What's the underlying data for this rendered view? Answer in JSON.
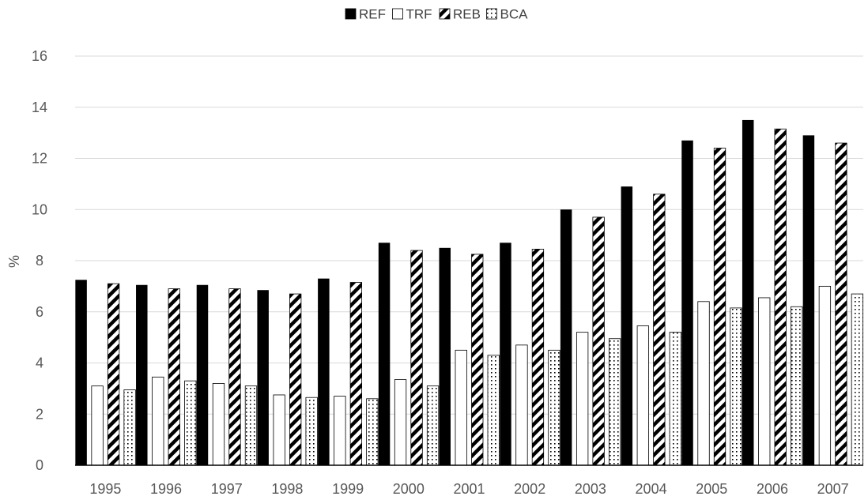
{
  "chart_data": {
    "type": "bar",
    "title": "",
    "xlabel": "",
    "ylabel": "%",
    "ylim": [
      0,
      16
    ],
    "yticks": [
      0,
      2,
      4,
      6,
      8,
      10,
      12,
      14,
      16
    ],
    "grid": true,
    "legend_position": "top-center",
    "categories": [
      "1995",
      "1996",
      "1997",
      "1998",
      "1999",
      "2000",
      "2001",
      "2002",
      "2003",
      "2004",
      "2005",
      "2006",
      "2007"
    ],
    "series": [
      {
        "name": "REF",
        "pattern": "solid",
        "color": "#000000",
        "values": [
          7.25,
          7.05,
          7.05,
          6.85,
          7.3,
          8.7,
          8.5,
          8.7,
          10.0,
          10.9,
          12.7,
          13.5,
          12.9
        ]
      },
      {
        "name": "TRF",
        "pattern": "empty",
        "color": "#ffffff",
        "values": [
          3.1,
          3.45,
          3.2,
          2.75,
          2.7,
          3.35,
          4.5,
          4.7,
          5.2,
          5.45,
          6.4,
          6.55,
          7.0
        ]
      },
      {
        "name": "REB",
        "pattern": "diagonal-stripes",
        "color": "#000000",
        "values": [
          7.1,
          6.9,
          6.9,
          6.7,
          7.15,
          8.4,
          8.25,
          8.45,
          9.7,
          10.6,
          12.4,
          13.15,
          12.6
        ]
      },
      {
        "name": "BCA",
        "pattern": "dots",
        "color": "#000000",
        "values": [
          2.95,
          3.3,
          3.1,
          2.65,
          2.6,
          3.1,
          4.3,
          4.5,
          4.95,
          5.2,
          6.15,
          6.2,
          6.7
        ]
      }
    ]
  }
}
